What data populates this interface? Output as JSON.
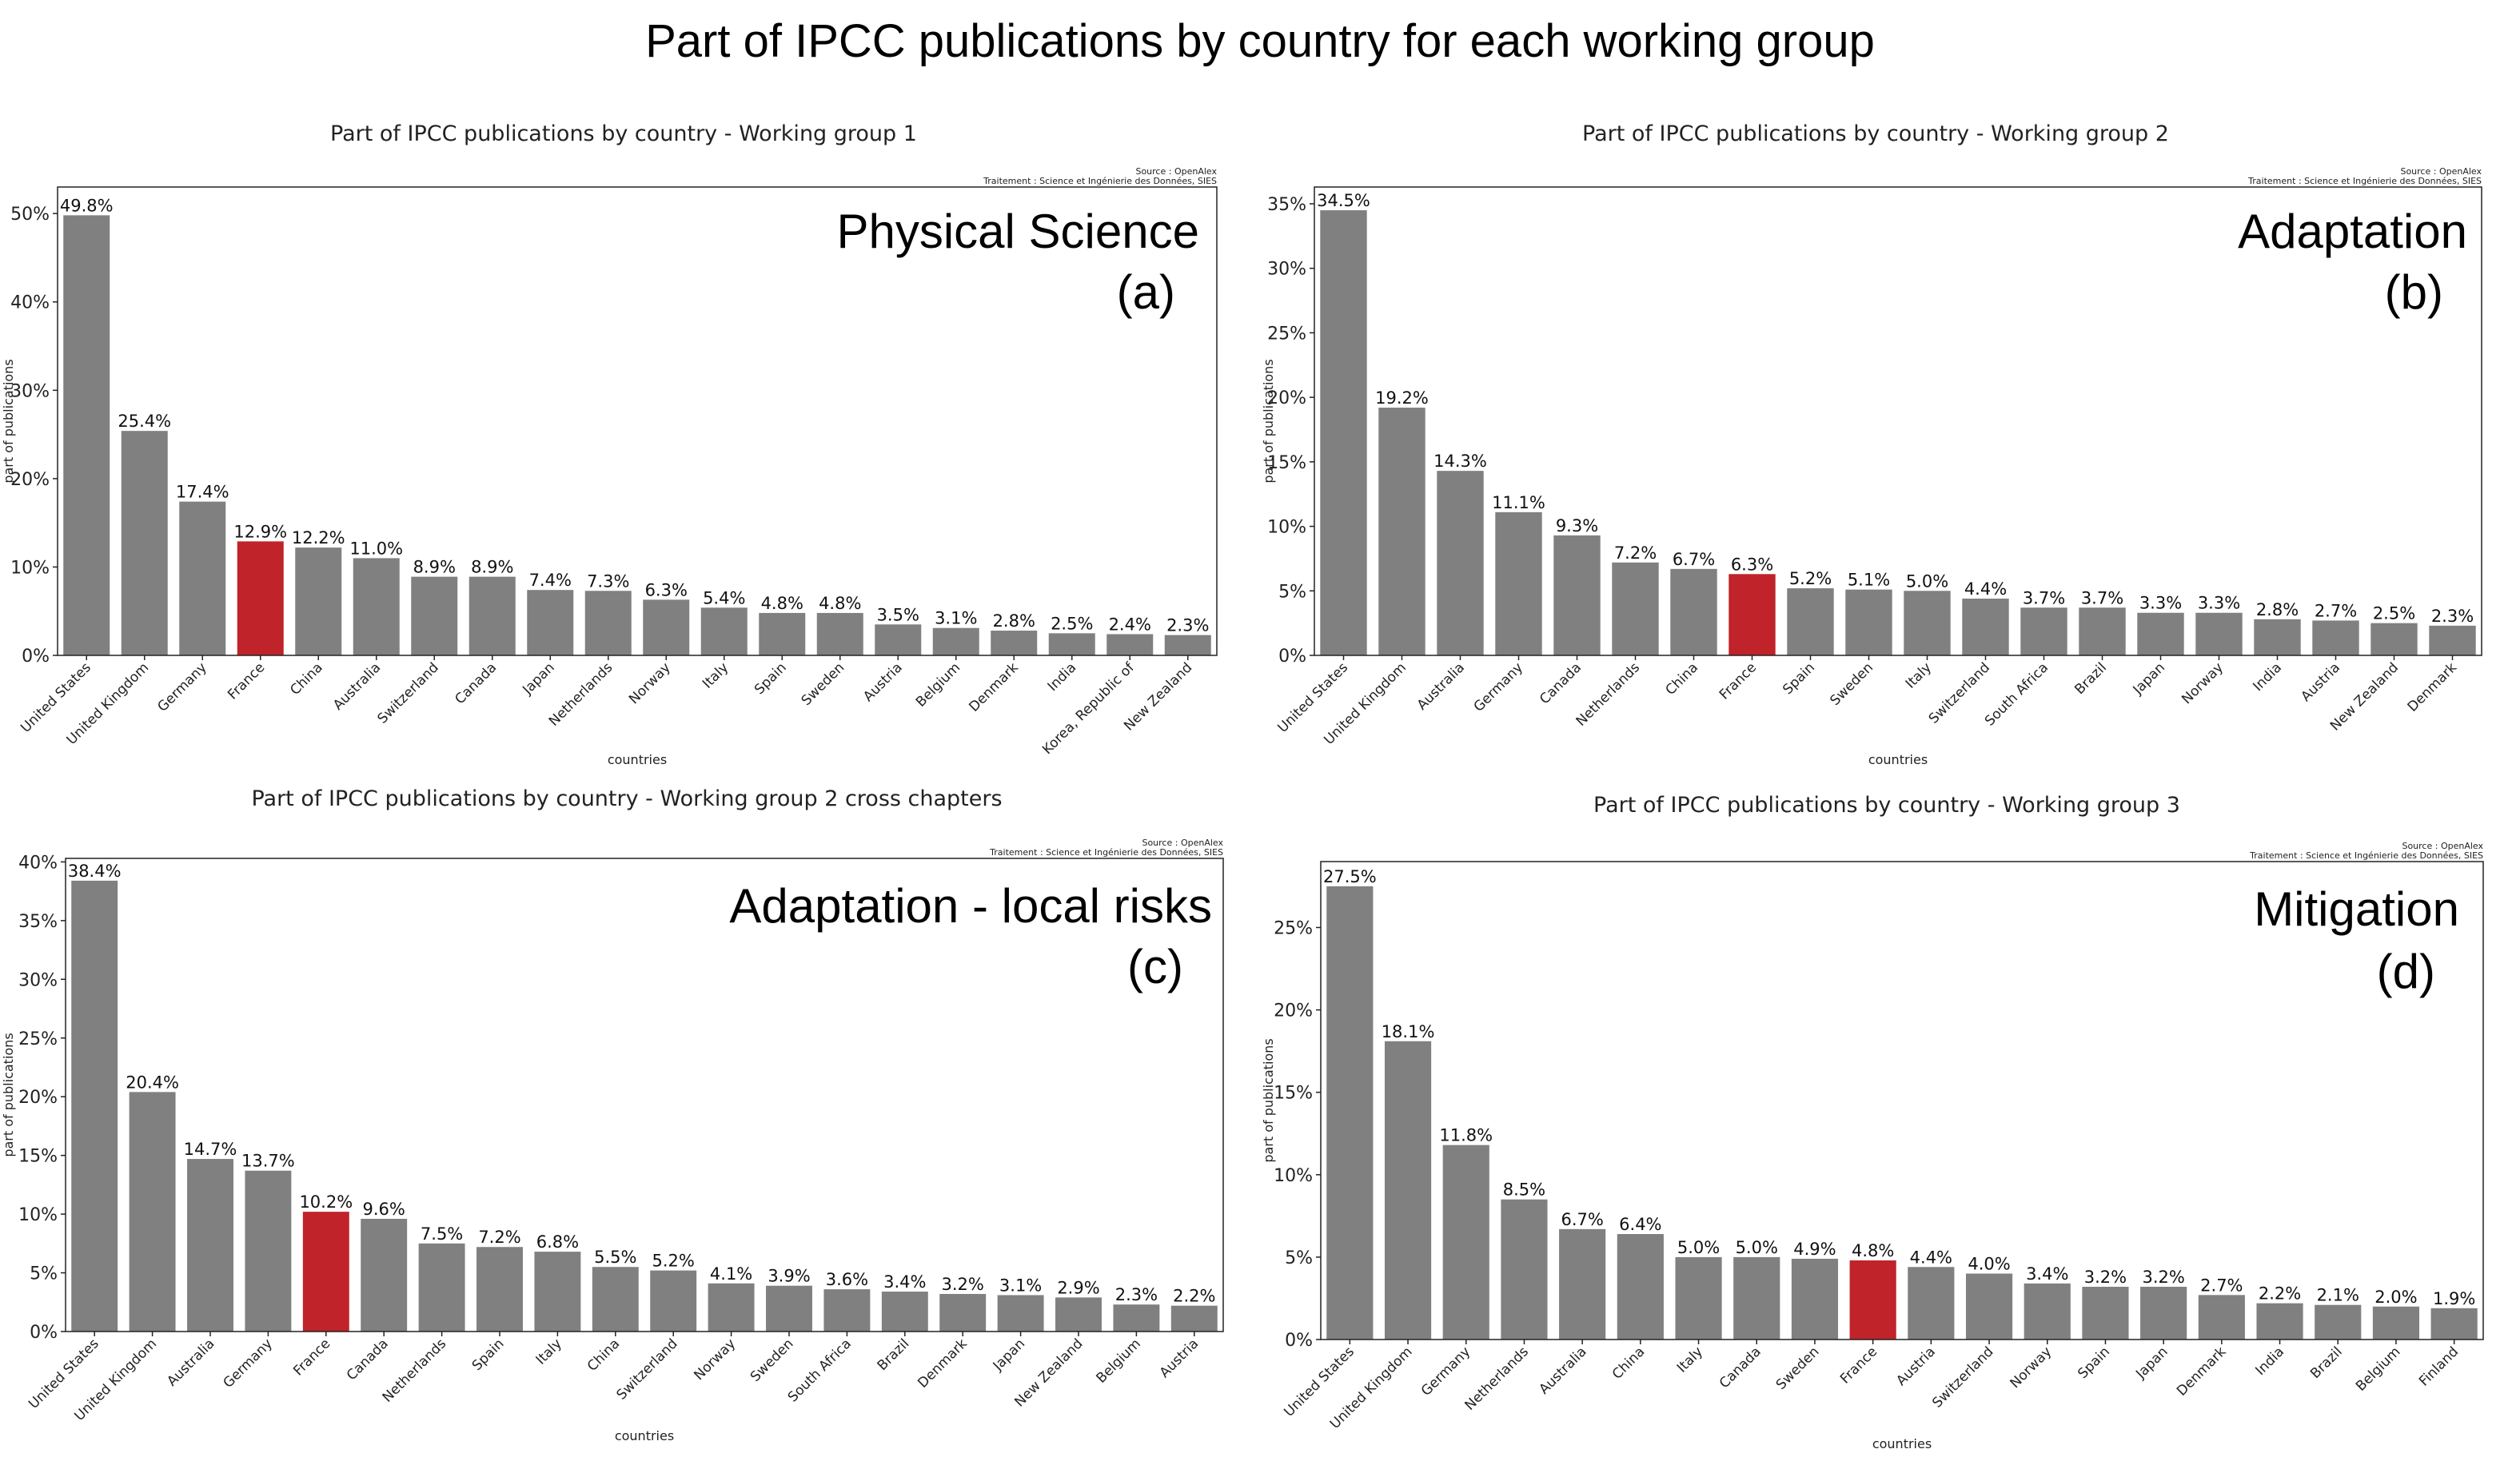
{
  "title": "Part of IPCC publications by country for each working group",
  "colors": {
    "bar": "#808080",
    "highlight": "#c0232a",
    "axis": "#222222"
  },
  "chart_data": [
    {
      "type": "bar",
      "title": "Part of IPCC publications by country - Working group 1",
      "source": "Source : OpenAlex",
      "treatment": "Traitement : Science et Ingénierie des Données, SIES",
      "theme": "Physical Science",
      "panel_label": "(a)",
      "xlabel": "countries",
      "ylabel": "part of publications",
      "ylim": [
        0,
        53
      ],
      "yticks": [
        0,
        10,
        20,
        30,
        40,
        50
      ],
      "highlight": "France",
      "categories": [
        "United States",
        "United Kingdom",
        "Germany",
        "France",
        "China",
        "Australia",
        "Switzerland",
        "Canada",
        "Japan",
        "Netherlands",
        "Norway",
        "Italy",
        "Spain",
        "Sweden",
        "Austria",
        "Belgium",
        "Denmark",
        "India",
        "Korea, Republic of",
        "New Zealand"
      ],
      "values": [
        49.8,
        25.4,
        17.4,
        12.9,
        12.2,
        11.0,
        8.9,
        8.9,
        7.4,
        7.3,
        6.3,
        5.4,
        4.8,
        4.8,
        3.5,
        3.1,
        2.8,
        2.5,
        2.4,
        2.3
      ]
    },
    {
      "type": "bar",
      "title": "Part of IPCC publications by country - Working group 2",
      "source": "Source : OpenAlex",
      "treatment": "Traitement : Science et Ingénierie des Données, SIES",
      "theme": "Adaptation",
      "panel_label": "(b)",
      "xlabel": "countries",
      "ylabel": "part of publications",
      "ylim": [
        0,
        36.3
      ],
      "yticks": [
        0,
        5,
        10,
        15,
        20,
        25,
        30,
        35
      ],
      "highlight": "France",
      "categories": [
        "United States",
        "United Kingdom",
        "Australia",
        "Germany",
        "Canada",
        "Netherlands",
        "China",
        "France",
        "Spain",
        "Sweden",
        "Italy",
        "Switzerland",
        "South Africa",
        "Brazil",
        "Japan",
        "Norway",
        "India",
        "Austria",
        "New Zealand",
        "Denmark"
      ],
      "values": [
        34.5,
        19.2,
        14.3,
        11.1,
        9.3,
        7.2,
        6.7,
        6.3,
        5.2,
        5.1,
        5.0,
        4.4,
        3.7,
        3.7,
        3.3,
        3.3,
        2.8,
        2.7,
        2.5,
        2.3
      ]
    },
    {
      "type": "bar",
      "title": "Part of IPCC publications by country - Working group 2 cross chapters",
      "source": "Source : OpenAlex",
      "treatment": "Traitement : Science et Ingénierie des Données, SIES",
      "theme": "Adaptation - local risks",
      "panel_label": "(c)",
      "xlabel": "countries",
      "ylabel": "part of publications",
      "ylim": [
        0,
        40.3
      ],
      "yticks": [
        0,
        5,
        10,
        15,
        20,
        25,
        30,
        35,
        40
      ],
      "highlight": "France",
      "categories": [
        "United States",
        "United Kingdom",
        "Australia",
        "Germany",
        "France",
        "Canada",
        "Netherlands",
        "Spain",
        "Italy",
        "China",
        "Switzerland",
        "Norway",
        "Sweden",
        "South Africa",
        "Brazil",
        "Denmark",
        "Japan",
        "New Zealand",
        "Belgium",
        "Austria"
      ],
      "values": [
        38.4,
        20.4,
        14.7,
        13.7,
        10.2,
        9.6,
        7.5,
        7.2,
        6.8,
        5.5,
        5.2,
        4.1,
        3.9,
        3.6,
        3.4,
        3.2,
        3.1,
        2.9,
        2.3,
        2.2
      ]
    },
    {
      "type": "bar",
      "title": "Part of IPCC publications by country - Working group 3",
      "source": "Source : OpenAlex",
      "treatment": "Traitement : Science et Ingénierie des Données, SIES",
      "theme": "Mitigation",
      "panel_label": "(d)",
      "xlabel": "countries",
      "ylabel": "part of publications",
      "ylim": [
        0,
        29
      ],
      "yticks": [
        0,
        5,
        10,
        15,
        20,
        25
      ],
      "highlight": "France",
      "categories": [
        "United States",
        "United Kingdom",
        "Germany",
        "Netherlands",
        "Australia",
        "China",
        "Italy",
        "Canada",
        "Sweden",
        "France",
        "Austria",
        "Switzerland",
        "Norway",
        "Spain",
        "Japan",
        "Denmark",
        "India",
        "Brazil",
        "Belgium",
        "Finland"
      ],
      "values": [
        27.5,
        18.1,
        11.8,
        8.5,
        6.7,
        6.4,
        5.0,
        5.0,
        4.9,
        4.8,
        4.4,
        4.0,
        3.4,
        3.2,
        3.2,
        2.7,
        2.2,
        2.1,
        2.0,
        1.9
      ]
    }
  ]
}
